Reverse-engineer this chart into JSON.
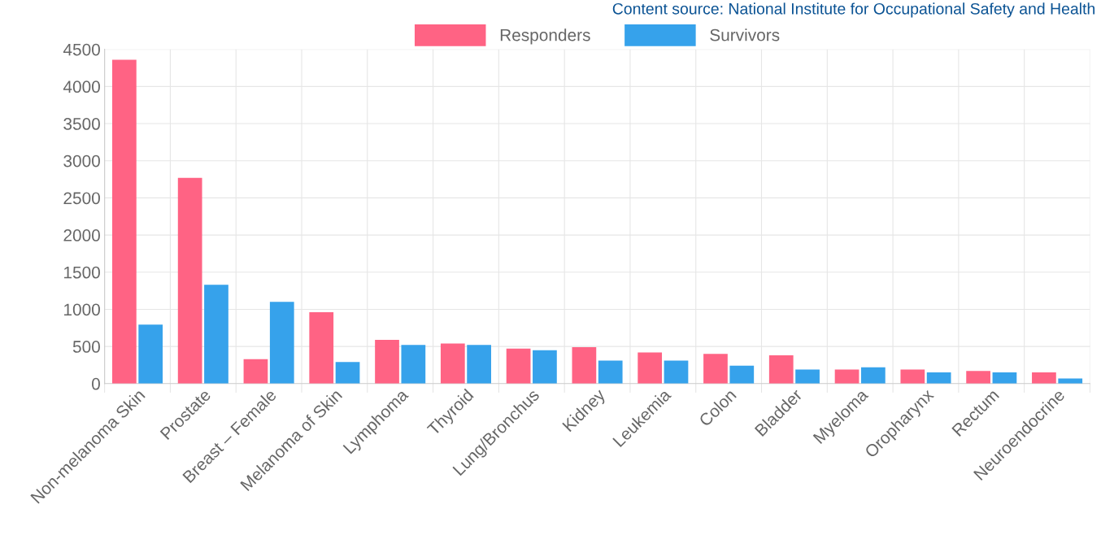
{
  "chart_data": {
    "type": "bar",
    "categories": [
      "Non-melanoma Skin",
      "Prostate",
      "Breast – Female",
      "Melanoma of Skin",
      "Lymphoma",
      "Thyroid",
      "Lung/Bronchus",
      "Kidney",
      "Leukemia",
      "Colon",
      "Bladder",
      "Myeloma",
      "Oropharynx",
      "Rectum",
      "Neuroendocrine"
    ],
    "series": [
      {
        "name": "Responders",
        "color": "#ff6384",
        "values": [
          4360,
          2770,
          330,
          960,
          590,
          540,
          470,
          490,
          420,
          400,
          380,
          190,
          190,
          170,
          150
        ]
      },
      {
        "name": "Survivors",
        "color": "#36a2eb",
        "values": [
          795,
          1330,
          1100,
          290,
          520,
          520,
          450,
          310,
          310,
          240,
          190,
          220,
          150,
          150,
          70
        ]
      }
    ],
    "ylim": [
      0,
      4500
    ],
    "yticks": [
      0,
      500,
      1000,
      1500,
      2000,
      2500,
      3000,
      3500,
      4000,
      4500
    ],
    "grid": true,
    "legend": "top",
    "annotations": [
      "Content source: National Institute for Occupational Safety and Health"
    ]
  }
}
